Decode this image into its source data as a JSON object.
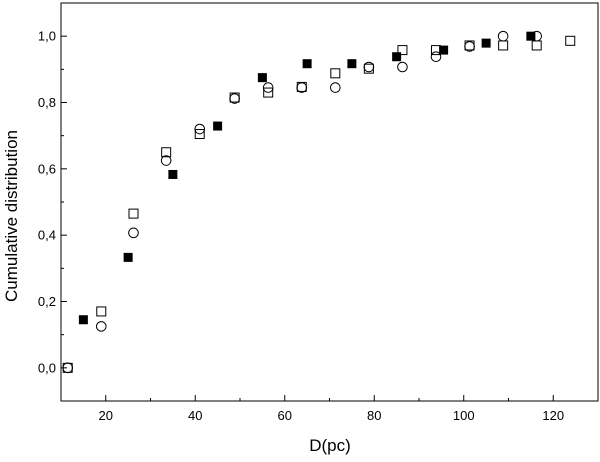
{
  "chart_data": {
    "type": "scatter",
    "xlabel": "D(pc)",
    "ylabel": "Cumulative distribution",
    "xlim": [
      10,
      130
    ],
    "ylim": [
      -0.1,
      1.1
    ],
    "xticks": [
      20,
      40,
      60,
      80,
      100,
      120
    ],
    "xtick_labels": [
      "20",
      "40",
      "60",
      "80",
      "100",
      "120"
    ],
    "yticks": [
      0.0,
      0.2,
      0.4,
      0.6,
      0.8,
      1.0
    ],
    "ytick_labels": [
      "0,0",
      "0,2",
      "0,4",
      "0,6",
      "0,8",
      "1,0"
    ],
    "grid": false,
    "series": [
      {
        "marker": "filled-square",
        "color": "#000000",
        "x": [
          15,
          25,
          35,
          45,
          55,
          65,
          75,
          85,
          95.5,
          105,
          115
        ],
        "y": [
          0.145,
          0.333,
          0.583,
          0.729,
          0.875,
          0.917,
          0.917,
          0.938,
          0.958,
          0.979,
          1.0
        ]
      },
      {
        "marker": "open-square",
        "color": "#000000",
        "x": [
          11.5,
          19,
          26.2,
          33.5,
          41,
          48.8,
          56.3,
          63.8,
          71.3,
          78.8,
          86.3,
          93.8,
          101.3,
          108.8,
          116.3,
          123.8
        ],
        "y": [
          0.0,
          0.17,
          0.465,
          0.65,
          0.705,
          0.815,
          0.83,
          0.847,
          0.888,
          0.902,
          0.958,
          0.958,
          0.972,
          0.972,
          0.972,
          0.986
        ]
      },
      {
        "marker": "open-circle",
        "color": "#000000",
        "x": [
          11.5,
          19,
          26.2,
          33.5,
          41,
          48.8,
          56.3,
          63.8,
          71.3,
          78.8,
          86.3,
          93.8,
          101.3,
          108.8,
          116.3
        ],
        "y": [
          0.0,
          0.125,
          0.407,
          0.625,
          0.72,
          0.812,
          0.845,
          0.845,
          0.845,
          0.907,
          0.907,
          0.938,
          0.969,
          1.0,
          1.0
        ]
      }
    ]
  }
}
